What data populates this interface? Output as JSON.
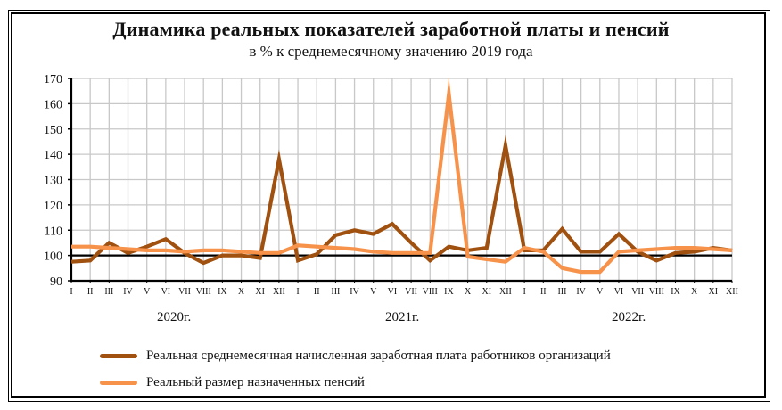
{
  "title": "Динамика реальных показателей заработной платы и пенсий",
  "subtitle": "в % к среднемесячному значению 2019 года",
  "years": [
    "2020г.",
    "2021г.",
    "2022г."
  ],
  "legend": [
    {
      "label": "Реальная среднемесячная  начисленная  заработная  плата работников  организаций",
      "color": "#a0500f"
    },
    {
      "label": "Реальный размер назначенных  пенсий",
      "color": "#f7924a"
    }
  ],
  "chart_data": {
    "type": "line",
    "title": "Динамика реальных показателей заработной платы и пенсий",
    "subtitle": "в % к среднемесячному значению 2019 года",
    "xlabel": "",
    "ylabel": "",
    "ylim": [
      90,
      170
    ],
    "yticks": [
      90,
      100,
      110,
      120,
      130,
      140,
      150,
      160,
      170
    ],
    "grid": true,
    "reference_line": 100,
    "legend_position": "bottom",
    "x_groups": [
      "2020г.",
      "2021г.",
      "2022г."
    ],
    "categories": [
      "I",
      "II",
      "III",
      "IV",
      "V",
      "VI",
      "VII",
      "VIII",
      "IX",
      "X",
      "XI",
      "XII",
      "I",
      "II",
      "III",
      "IV",
      "V",
      "VI",
      "VII",
      "VIII",
      "IX",
      "X",
      "XI",
      "XII",
      "I",
      "II",
      "III",
      "IV",
      "V",
      "VI",
      "VII",
      "VIII",
      "IX",
      "X",
      "XI",
      "XII"
    ],
    "series": [
      {
        "name": "Реальная среднемесячная начисленная заработная плата работников организаций",
        "color": "#a0500f",
        "values": [
          97.5,
          98,
          105,
          101,
          103.5,
          106.5,
          101,
          97,
          100,
          100,
          99,
          138,
          98,
          100.5,
          108,
          110,
          108.5,
          112.5,
          105,
          98,
          103.5,
          102,
          103,
          143.5,
          102,
          102,
          110.5,
          101.5,
          101.5,
          108.5,
          101.5,
          98,
          101,
          101.5,
          103,
          102
        ]
      },
      {
        "name": "Реальный размер назначенных пенсий",
        "color": "#f7924a",
        "values": [
          103.5,
          103.5,
          103,
          102.5,
          102,
          102,
          101.5,
          102,
          102,
          101.5,
          101,
          101,
          104,
          103.5,
          103,
          102.5,
          101.5,
          101,
          101,
          101,
          164,
          99.5,
          98.5,
          97.5,
          103,
          101.5,
          95,
          93.5,
          93.5,
          101.5,
          102,
          102.5,
          103,
          103,
          102.5,
          102
        ]
      }
    ]
  }
}
